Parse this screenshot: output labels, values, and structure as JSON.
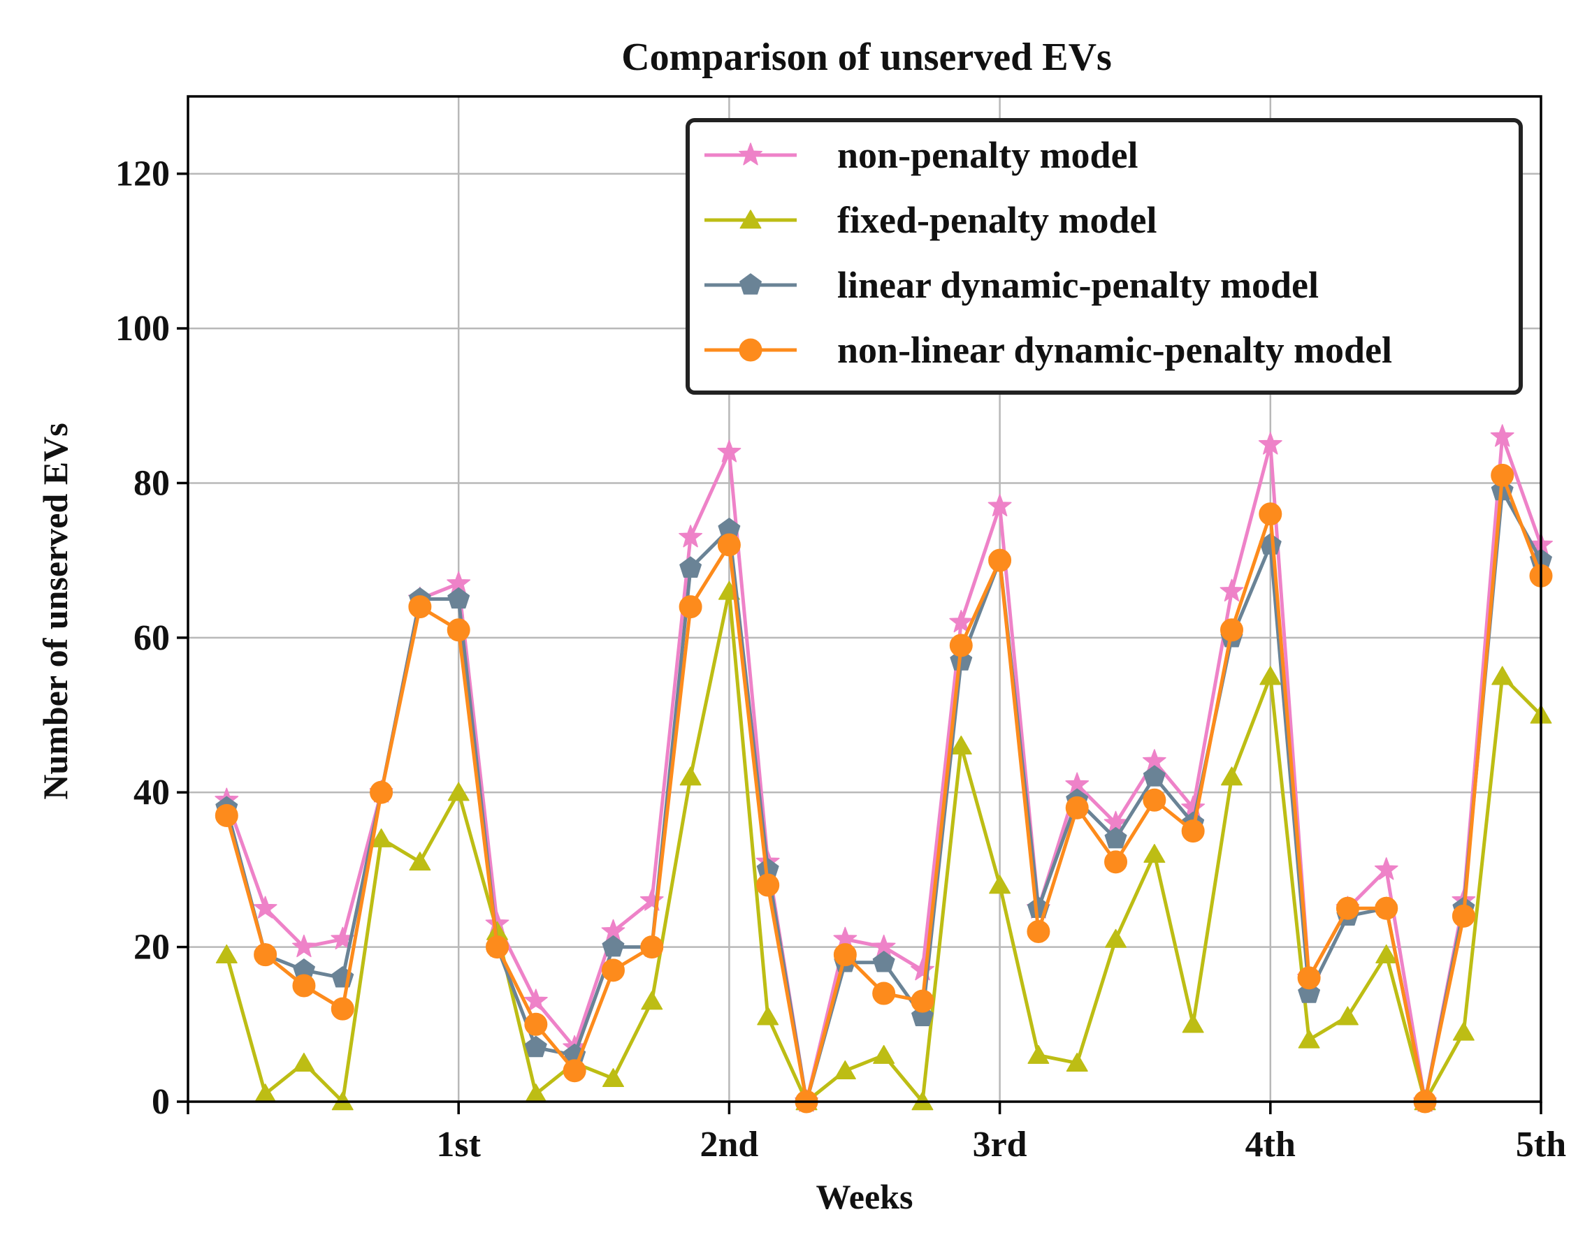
{
  "chart_data": {
    "type": "line",
    "title": "Comparison of unserved EVs",
    "xlabel": "Weeks",
    "ylabel": "Number of unserved EVs",
    "xlim": [
      0,
      35
    ],
    "ylim": [
      0,
      130
    ],
    "grid": true,
    "legend_position": "top-right",
    "xticks": [
      {
        "x": 7,
        "label": "1st"
      },
      {
        "x": 14,
        "label": "2nd"
      },
      {
        "x": 21,
        "label": "3rd"
      },
      {
        "x": 28,
        "label": "4th"
      },
      {
        "x": 35,
        "label": "5th"
      }
    ],
    "yticks": [
      0,
      20,
      40,
      60,
      80,
      100,
      120
    ],
    "x": [
      1,
      2,
      3,
      4,
      5,
      6,
      7,
      8,
      9,
      10,
      11,
      12,
      13,
      14,
      15,
      16,
      17,
      18,
      19,
      20,
      21,
      22,
      23,
      24,
      25,
      26,
      27,
      28,
      29,
      30,
      31,
      32,
      33,
      34,
      35
    ],
    "series": [
      {
        "name": "non-penalty model",
        "color": "#ee82c8",
        "marker": "star",
        "values": [
          39,
          25,
          20,
          21,
          40,
          65,
          67,
          23,
          13,
          7,
          22,
          26,
          73,
          84,
          31,
          0,
          21,
          20,
          17,
          62,
          77,
          25,
          41,
          36,
          44,
          38,
          66,
          85,
          16,
          25,
          30,
          0,
          26,
          86,
          72
        ]
      },
      {
        "name": "fixed-penalty model",
        "color": "#bdbd14",
        "marker": "triangle",
        "values": [
          19,
          1,
          5,
          0,
          34,
          31,
          40,
          22,
          1,
          5,
          3,
          13,
          42,
          66,
          11,
          0,
          4,
          6,
          0,
          46,
          28,
          6,
          5,
          21,
          32,
          10,
          42,
          55,
          8,
          11,
          19,
          0,
          9,
          55,
          50
        ]
      },
      {
        "name": "linear dynamic-penalty model",
        "color": "#6a8396",
        "marker": "pentagon",
        "values": [
          38,
          19,
          17,
          16,
          40,
          65,
          65,
          20,
          7,
          6,
          20,
          20,
          69,
          74,
          30,
          0,
          18,
          18,
          11,
          57,
          70,
          25,
          39,
          34,
          42,
          36,
          60,
          72,
          14,
          24,
          25,
          0,
          25,
          79,
          70
        ]
      },
      {
        "name": "non-linear dynamic-penalty model",
        "color": "#fd8b1c",
        "marker": "circle",
        "values": [
          37,
          19,
          15,
          12,
          40,
          64,
          61,
          20,
          10,
          4,
          17,
          20,
          64,
          72,
          28,
          0,
          19,
          14,
          13,
          59,
          70,
          22,
          38,
          31,
          39,
          35,
          61,
          76,
          16,
          25,
          25,
          0,
          24,
          81,
          68
        ]
      }
    ]
  }
}
